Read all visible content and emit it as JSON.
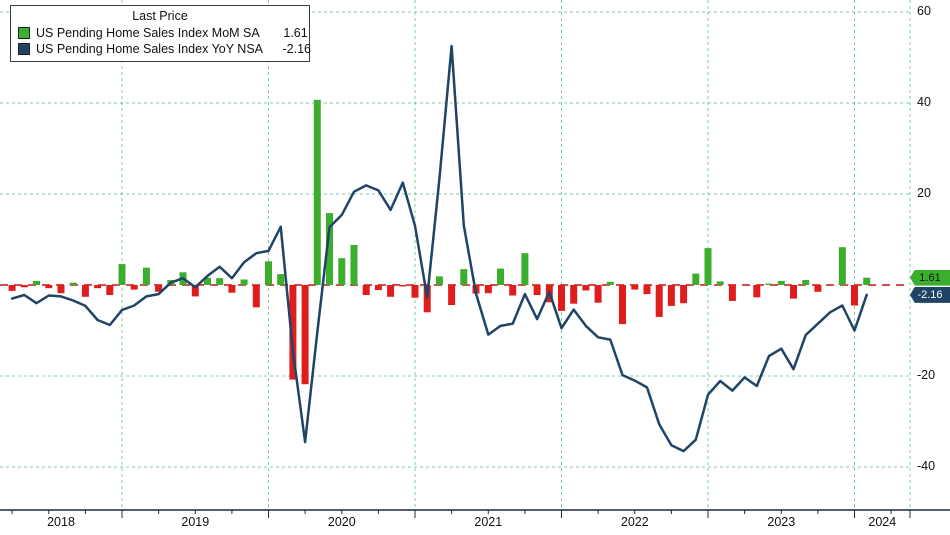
{
  "legend": {
    "title": "Last Price",
    "series": [
      {
        "label": "US Pending Home Sales Index MoM SA",
        "value": "1.61"
      },
      {
        "label": "US Pending Home Sales Index YoY NSA",
        "value": "-2.16"
      }
    ]
  },
  "badges": {
    "mom": "1.61",
    "yoy": "-2.16"
  },
  "axis": {
    "y_ticks": [
      60,
      40,
      20,
      -20,
      -40
    ],
    "x_labels": [
      "2018",
      "2019",
      "2020",
      "2021",
      "2022",
      "2023",
      "2024"
    ]
  },
  "colors": {
    "background": "#ffffff",
    "grid": "rgba(0,158,70,0.5)",
    "zero_line": "#c81414",
    "axis": "#1b2a3a",
    "bar_positive": "#3cae2e",
    "bar_negative": "#e01d1d",
    "line": "#1f4466",
    "badge_mom_text": "#0a1a08",
    "badge_yoy_text": "#ffffff"
  },
  "chart_data": {
    "type": "bar+line",
    "title": "US Pending Home Sales Index",
    "frequency": "monthly",
    "x_start": "2018-04",
    "x_end": "2024-02",
    "ylim": [
      -49,
      62
    ],
    "grid": true,
    "legend_position": "top-left",
    "zero_line": true,
    "series": [
      {
        "name": "US Pending Home Sales Index MoM SA",
        "type": "bar",
        "color_positive": "#3cae2e",
        "color_negative": "#e01d1d",
        "values": [
          -1.3,
          -0.5,
          0.9,
          -0.7,
          -1.8,
          0.5,
          -2.6,
          -0.7,
          -2.2,
          4.6,
          -1.0,
          3.8,
          -1.5,
          1.1,
          2.8,
          -2.5,
          1.6,
          1.5,
          -1.7,
          1.2,
          -4.9,
          5.2,
          2.4,
          -20.8,
          -21.8,
          40.7,
          15.8,
          5.9,
          8.8,
          -2.2,
          -1.1,
          -2.6,
          -0.3,
          -2.8,
          -6.0,
          1.9,
          -4.4,
          3.5,
          -1.9,
          -1.8,
          3.6,
          -2.3,
          7.0,
          -2.2,
          -3.8,
          -5.7,
          -4.1,
          -1.2,
          -3.9,
          0.7,
          -8.6,
          -1.0,
          -2.0,
          -7.0,
          -4.6,
          -4.0,
          2.5,
          8.1,
          0.8,
          -3.5,
          0.0,
          -2.7,
          0.3,
          0.9,
          -3.0,
          1.1,
          -1.5,
          0.0,
          8.3,
          -4.5,
          1.61
        ]
      },
      {
        "name": "US Pending Home Sales Index YoY NSA",
        "type": "line",
        "color": "#1f4466",
        "values": [
          -3.0,
          -2.2,
          -4.0,
          -2.3,
          -2.5,
          -3.4,
          -4.6,
          -7.7,
          -8.8,
          -5.5,
          -4.5,
          -2.5,
          -2.0,
          0.5,
          1.5,
          -0.5,
          2.0,
          4.0,
          1.5,
          5.0,
          7.0,
          7.5,
          12.8,
          -14.5,
          -34.5,
          -10.4,
          12.7,
          15.4,
          20.5,
          21.9,
          20.8,
          16.5,
          22.5,
          13.0,
          -2.7,
          23.3,
          52.5,
          13.1,
          -1.9,
          -10.9,
          -9.0,
          -8.5,
          -2.0,
          -7.5,
          -1.5,
          -9.5,
          -5.4,
          -9.0,
          -11.5,
          -12.0,
          -19.8,
          -21.0,
          -22.5,
          -30.6,
          -35.2,
          -36.5,
          -34.0,
          -24.1,
          -21.1,
          -23.2,
          -20.3,
          -22.2,
          -15.6,
          -14.0,
          -18.5,
          -11.0,
          -8.5,
          -6.0,
          -4.5,
          -10.0,
          -2.16
        ]
      }
    ],
    "last_values": {
      "mom": 1.61,
      "yoy": -2.16
    }
  }
}
